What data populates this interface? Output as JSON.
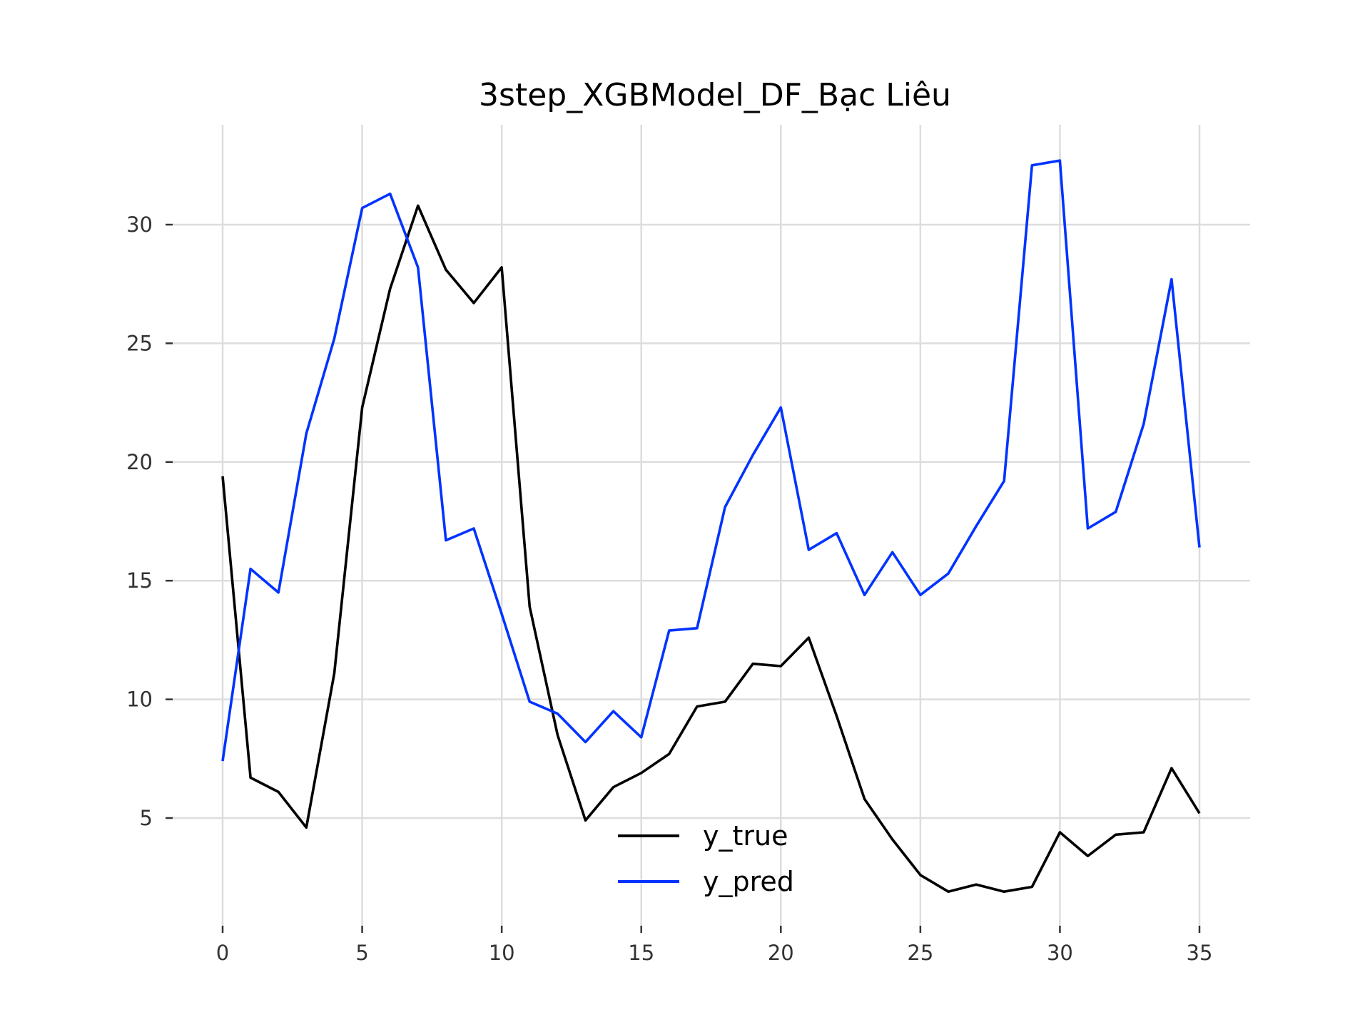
{
  "chart_data": {
    "type": "line",
    "title": "3step_XGBModel_DF_Bạc Liêu",
    "xlabel": "",
    "ylabel": "",
    "xlim": [
      0,
      35
    ],
    "ylim": [
      0,
      34
    ],
    "grid": true,
    "legend_position": "bottom-center",
    "x_ticks": [
      0,
      5,
      10,
      15,
      20,
      25,
      30,
      35
    ],
    "x_tick_labels": [
      "0",
      "5",
      "10",
      "15",
      "20",
      "25",
      "30",
      "35"
    ],
    "y_ticks": [
      5,
      10,
      15,
      20,
      25,
      30
    ],
    "y_tick_labels": [
      "5",
      "10",
      "15",
      "20",
      "25",
      "30"
    ],
    "x": [
      0,
      1,
      2,
      3,
      4,
      5,
      6,
      7,
      8,
      9,
      10,
      11,
      12,
      13,
      14,
      15,
      16,
      17,
      18,
      19,
      20,
      21,
      22,
      23,
      24,
      25,
      26,
      27,
      28,
      29,
      30,
      31,
      32,
      33,
      34,
      35
    ],
    "series": [
      {
        "name": "y_true",
        "color": "#000000",
        "values": [
          19.4,
          6.7,
          6.1,
          4.6,
          11.1,
          22.3,
          27.3,
          30.8,
          28.1,
          26.7,
          28.2,
          13.9,
          8.5,
          4.9,
          6.3,
          6.9,
          7.7,
          9.7,
          9.9,
          11.5,
          11.4,
          12.6,
          9.3,
          5.8,
          4.1,
          2.6,
          1.9,
          2.2,
          1.9,
          2.1,
          4.4,
          3.4,
          4.3,
          4.4,
          7.1,
          5.2
        ]
      },
      {
        "name": "y_pred",
        "color": "#0033ff",
        "values": [
          7.4,
          15.5,
          14.5,
          21.2,
          25.2,
          30.7,
          31.3,
          28.2,
          16.7,
          17.2,
          13.6,
          9.9,
          9.4,
          8.2,
          9.5,
          8.4,
          12.9,
          13.0,
          18.1,
          20.3,
          22.3,
          16.3,
          17.0,
          14.4,
          16.2,
          14.4,
          15.3,
          17.3,
          19.2,
          32.5,
          32.7,
          17.2,
          17.9,
          21.6,
          27.7,
          16.4
        ]
      }
    ]
  }
}
